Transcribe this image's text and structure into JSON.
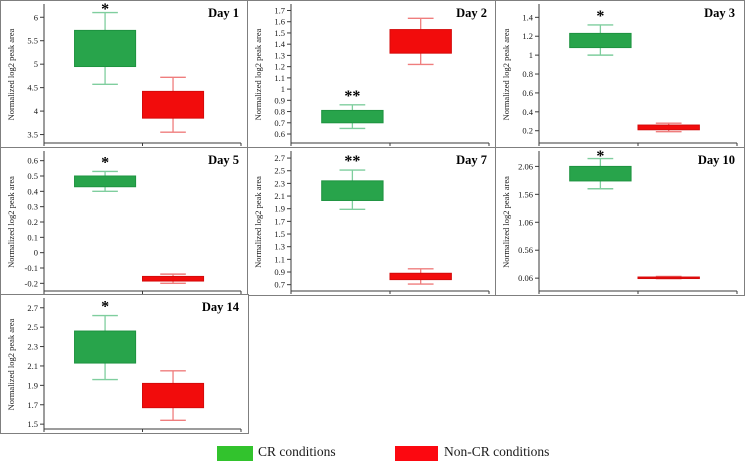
{
  "figure": {
    "ylabel": "Normalized log2 peak area",
    "colors": {
      "cr_box": "#28a44b",
      "cr_edge": "#1e9340",
      "cr_whisker": "#7fce9e",
      "noncr_box": "#f20c0c",
      "noncr_edge": "#d40a0a",
      "noncr_whisker": "#ef7d7d",
      "axis": "#3a3a3a",
      "panel_border": "#7f7f7f",
      "text": "#1a1a1a"
    },
    "legend": {
      "items": [
        {
          "label": "CR conditions",
          "color": "#32c32d"
        },
        {
          "label": "Non-CR conditions",
          "color": "#fc0810"
        }
      ]
    }
  },
  "chart_data": [
    {
      "type": "box",
      "title": "Day 1",
      "ylabel": "Normalized log2 peak area",
      "ylim": [
        3.32,
        6.24
      ],
      "yticks": [
        3.5,
        4,
        4.5,
        5,
        5.5,
        6
      ],
      "ytick_labels": [
        "3.5",
        "4",
        "4.5",
        "5",
        "5.5",
        "6"
      ],
      "series": [
        {
          "name": "CR conditions",
          "color_key": "cr",
          "whisker_low": 4.57,
          "q1": 4.95,
          "q3": 5.72,
          "whisker_high": 6.1,
          "significance": "*"
        },
        {
          "name": "Non-CR conditions",
          "color_key": "noncr",
          "whisker_low": 3.55,
          "q1": 3.85,
          "q3": 4.42,
          "whisker_high": 4.72,
          "significance": ""
        }
      ]
    },
    {
      "type": "box",
      "title": "Day 2",
      "ylabel": "Normalized log2 peak area",
      "ylim": [
        0.52,
        1.74
      ],
      "yticks": [
        0.6,
        0.7,
        0.8,
        0.9,
        1,
        1.1,
        1.2,
        1.3,
        1.4,
        1.5,
        1.6,
        1.7
      ],
      "ytick_labels": [
        "0.6",
        "0.7",
        "0.8",
        "0.9",
        "1",
        "1.1",
        "1.2",
        "1.3",
        "1.4",
        "1.5",
        "1.6",
        "1.7"
      ],
      "series": [
        {
          "name": "CR conditions",
          "color_key": "cr",
          "whisker_low": 0.65,
          "q1": 0.7,
          "q3": 0.81,
          "whisker_high": 0.86,
          "significance": "**"
        },
        {
          "name": "Non-CR conditions",
          "color_key": "noncr",
          "whisker_low": 1.22,
          "q1": 1.32,
          "q3": 1.53,
          "whisker_high": 1.63,
          "significance": ""
        }
      ]
    },
    {
      "type": "box",
      "title": "Day 3",
      "ylabel": "Normalized log2 peak area",
      "ylim": [
        0.07,
        1.52
      ],
      "yticks": [
        0.2,
        0.4,
        0.6,
        0.8,
        1,
        1.2,
        1.4
      ],
      "ytick_labels": [
        "0.2",
        "0.4",
        "0.6",
        "0.8",
        "1",
        "1.2",
        "1.4"
      ],
      "series": [
        {
          "name": "CR conditions",
          "color_key": "cr",
          "whisker_low": 1.0,
          "q1": 1.08,
          "q3": 1.23,
          "whisker_high": 1.32,
          "significance": "*"
        },
        {
          "name": "Non-CR conditions",
          "color_key": "noncr",
          "whisker_low": 0.19,
          "q1": 0.21,
          "q3": 0.26,
          "whisker_high": 0.28,
          "significance": ""
        }
      ]
    },
    {
      "type": "box",
      "title": "Day 5",
      "ylabel": "Normalized log2 peak area",
      "ylim": [
        -0.25,
        0.65
      ],
      "yticks": [
        -0.2,
        -0.1,
        0,
        0.1,
        0.2,
        0.3,
        0.4,
        0.5,
        0.6
      ],
      "ytick_labels": [
        "-0.2",
        "-0.1",
        "0",
        "0.1",
        "0.2",
        "0.3",
        "0.4",
        "0.5",
        "0.6"
      ],
      "series": [
        {
          "name": "CR conditions",
          "color_key": "cr",
          "whisker_low": 0.4,
          "q1": 0.43,
          "q3": 0.5,
          "whisker_high": 0.53,
          "significance": "*"
        },
        {
          "name": "Non-CR conditions",
          "color_key": "noncr",
          "whisker_low": -0.2,
          "q1": -0.185,
          "q3": -0.155,
          "whisker_high": -0.14,
          "significance": ""
        }
      ]
    },
    {
      "type": "box",
      "title": "Day 7",
      "ylabel": "Normalized log2 peak area",
      "ylim": [
        0.6,
        2.78
      ],
      "yticks": [
        0.7,
        0.9,
        1.1,
        1.3,
        1.5,
        1.7,
        1.9,
        2.1,
        2.3,
        2.5,
        2.7
      ],
      "ytick_labels": [
        "0.7",
        "0.9",
        "1.1",
        "1.3",
        "1.5",
        "1.7",
        "1.9",
        "2.1",
        "2.3",
        "2.5",
        "2.7"
      ],
      "series": [
        {
          "name": "CR conditions",
          "color_key": "cr",
          "whisker_low": 1.89,
          "q1": 2.03,
          "q3": 2.34,
          "whisker_high": 2.51,
          "significance": "**"
        },
        {
          "name": "Non-CR conditions",
          "color_key": "noncr",
          "whisker_low": 0.71,
          "q1": 0.78,
          "q3": 0.88,
          "whisker_high": 0.95,
          "significance": ""
        }
      ]
    },
    {
      "type": "box",
      "title": "Day 10",
      "ylabel": "Normalized log2 peak area",
      "ylim": [
        -0.17,
        2.3
      ],
      "yticks": [
        0.06,
        0.56,
        1.06,
        1.56,
        2.06
      ],
      "ytick_labels": [
        "0.06",
        "0.56",
        "1.06",
        "1.56",
        "2.06"
      ],
      "series": [
        {
          "name": "CR conditions",
          "color_key": "cr",
          "whisker_low": 1.66,
          "q1": 1.8,
          "q3": 2.06,
          "whisker_high": 2.2,
          "significance": "*"
        },
        {
          "name": "Non-CR conditions",
          "color_key": "noncr",
          "whisker_low": 0.05,
          "q1": 0.06,
          "q3": 0.08,
          "whisker_high": 0.09,
          "significance": ""
        }
      ]
    },
    {
      "type": "box",
      "title": "Day 14",
      "ylabel": "Normalized log2 peak area",
      "ylim": [
        1.45,
        2.78
      ],
      "yticks": [
        1.5,
        1.7,
        1.9,
        2.1,
        2.3,
        2.5,
        2.7
      ],
      "ytick_labels": [
        "1.5",
        "1.7",
        "1.9",
        "2.1",
        "2.3",
        "2.5",
        "2.7"
      ],
      "series": [
        {
          "name": "CR conditions",
          "color_key": "cr",
          "whisker_low": 1.96,
          "q1": 2.13,
          "q3": 2.46,
          "whisker_high": 2.62,
          "significance": "*"
        },
        {
          "name": "Non-CR conditions",
          "color_key": "noncr",
          "whisker_low": 1.54,
          "q1": 1.67,
          "q3": 1.92,
          "whisker_high": 2.05,
          "significance": ""
        }
      ]
    }
  ]
}
